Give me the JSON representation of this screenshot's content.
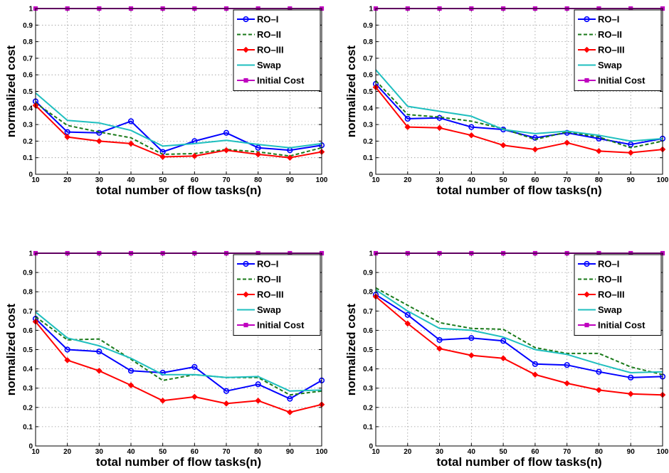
{
  "colors": {
    "RO-I": "#0000ff",
    "RO-II": "#1a7a1a",
    "RO-III": "#ff0000",
    "Swap": "#1fbfbf",
    "Initial Cost": "#bf00bf"
  },
  "chart_data": [
    {
      "type": "line",
      "xlabel": "total number of flow tasks(n)",
      "ylabel": "normalized cost",
      "xlim": [
        10,
        100
      ],
      "ylim": [
        0,
        1
      ],
      "xticks": [
        "10",
        "20",
        "30",
        "40",
        "50",
        "60",
        "70",
        "80",
        "90",
        "100"
      ],
      "yticks": [
        "0",
        "0.1",
        "0.2",
        "0.3",
        "0.4",
        "0.5",
        "0.6",
        "0.7",
        "0.8",
        "0.9",
        "1"
      ],
      "grid": true,
      "legend_position": "top-right",
      "x": [
        10,
        20,
        30,
        40,
        50,
        60,
        70,
        80,
        90,
        100
      ],
      "series": [
        {
          "name": "RO–I",
          "values": [
            0.44,
            0.255,
            0.25,
            0.32,
            0.135,
            0.2,
            0.25,
            0.16,
            0.145,
            0.175
          ]
        },
        {
          "name": "RO–II",
          "values": [
            0.43,
            0.295,
            0.255,
            0.22,
            0.12,
            0.125,
            0.15,
            0.135,
            0.11,
            0.16
          ]
        },
        {
          "name": "RO–III",
          "values": [
            0.415,
            0.225,
            0.2,
            0.185,
            0.105,
            0.11,
            0.145,
            0.12,
            0.1,
            0.135
          ]
        },
        {
          "name": "Swap",
          "values": [
            0.49,
            0.325,
            0.31,
            0.265,
            0.17,
            0.185,
            0.205,
            0.18,
            0.16,
            0.185
          ]
        },
        {
          "name": "Initial Cost",
          "values": [
            1,
            1,
            1,
            1,
            1,
            1,
            1,
            1,
            1,
            1
          ]
        }
      ]
    },
    {
      "type": "line",
      "xlabel": "total number of flow tasks(n)",
      "ylabel": "normalized cost",
      "xlim": [
        10,
        100
      ],
      "ylim": [
        0,
        1
      ],
      "xticks": [
        "10",
        "20",
        "30",
        "40",
        "50",
        "60",
        "70",
        "80",
        "90",
        "100"
      ],
      "yticks": [
        "0",
        "0.1",
        "0.2",
        "0.3",
        "0.4",
        "0.5",
        "0.6",
        "0.7",
        "0.8",
        "0.9",
        "1"
      ],
      "grid": true,
      "legend_position": "top-right",
      "x": [
        10,
        20,
        30,
        40,
        50,
        60,
        70,
        80,
        90,
        100
      ],
      "series": [
        {
          "name": "RO–I",
          "values": [
            0.545,
            0.335,
            0.34,
            0.285,
            0.27,
            0.22,
            0.25,
            0.215,
            0.18,
            0.215
          ]
        },
        {
          "name": "RO–II",
          "values": [
            0.565,
            0.36,
            0.345,
            0.32,
            0.275,
            0.21,
            0.255,
            0.225,
            0.16,
            0.2
          ]
        },
        {
          "name": "RO–III",
          "values": [
            0.525,
            0.285,
            0.28,
            0.235,
            0.175,
            0.15,
            0.19,
            0.14,
            0.13,
            0.15
          ]
        },
        {
          "name": "Swap",
          "values": [
            0.63,
            0.41,
            0.38,
            0.35,
            0.27,
            0.245,
            0.26,
            0.235,
            0.2,
            0.215
          ]
        },
        {
          "name": "Initial Cost",
          "values": [
            1,
            1,
            1,
            1,
            1,
            1,
            1,
            1,
            1,
            1
          ]
        }
      ]
    },
    {
      "type": "line",
      "xlabel": "total number of flow tasks(n)",
      "ylabel": "normalized cost",
      "xlim": [
        10,
        100
      ],
      "ylim": [
        0,
        1
      ],
      "xticks": [
        "10",
        "20",
        "30",
        "40",
        "50",
        "60",
        "70",
        "80",
        "90",
        "100"
      ],
      "yticks": [
        "0",
        "0.1",
        "0.2",
        "0.3",
        "0.4",
        "0.5",
        "0.6",
        "0.7",
        "0.8",
        "0.9",
        "1"
      ],
      "grid": true,
      "legend_position": "top-right",
      "x": [
        10,
        20,
        30,
        40,
        50,
        60,
        70,
        80,
        90,
        100
      ],
      "series": [
        {
          "name": "RO–I",
          "values": [
            0.66,
            0.5,
            0.49,
            0.39,
            0.38,
            0.41,
            0.285,
            0.32,
            0.245,
            0.34
          ]
        },
        {
          "name": "RO–II",
          "values": [
            0.67,
            0.55,
            0.555,
            0.45,
            0.34,
            0.37,
            0.355,
            0.355,
            0.265,
            0.285
          ]
        },
        {
          "name": "RO–III",
          "values": [
            0.645,
            0.445,
            0.39,
            0.315,
            0.235,
            0.255,
            0.22,
            0.235,
            0.175,
            0.215
          ]
        },
        {
          "name": "Swap",
          "values": [
            0.695,
            0.56,
            0.52,
            0.455,
            0.37,
            0.37,
            0.355,
            0.36,
            0.285,
            0.29
          ]
        },
        {
          "name": "Initial Cost",
          "values": [
            1,
            1,
            1,
            1,
            1,
            1,
            1,
            1,
            1,
            1
          ]
        }
      ]
    },
    {
      "type": "line",
      "xlabel": "total number of flow tasks(n)",
      "ylabel": "normalized cost",
      "xlim": [
        10,
        100
      ],
      "ylim": [
        0,
        1
      ],
      "xticks": [
        "10",
        "20",
        "30",
        "40",
        "50",
        "60",
        "70",
        "80",
        "90",
        "100"
      ],
      "yticks": [
        "0",
        "0.1",
        "0.2",
        "0.3",
        "0.4",
        "0.5",
        "0.6",
        "0.7",
        "0.8",
        "0.9",
        "1"
      ],
      "grid": true,
      "legend_position": "top-right",
      "x": [
        10,
        20,
        30,
        40,
        50,
        60,
        70,
        80,
        90,
        100
      ],
      "series": [
        {
          "name": "RO–I",
          "values": [
            0.785,
            0.68,
            0.55,
            0.56,
            0.545,
            0.425,
            0.42,
            0.385,
            0.355,
            0.36
          ]
        },
        {
          "name": "RO–II",
          "values": [
            0.82,
            0.73,
            0.64,
            0.61,
            0.605,
            0.51,
            0.48,
            0.48,
            0.41,
            0.37
          ]
        },
        {
          "name": "RO–III",
          "values": [
            0.775,
            0.635,
            0.505,
            0.47,
            0.455,
            0.37,
            0.325,
            0.29,
            0.27,
            0.265
          ]
        },
        {
          "name": "Swap",
          "values": [
            0.81,
            0.7,
            0.61,
            0.6,
            0.565,
            0.5,
            0.475,
            0.425,
            0.38,
            0.385
          ]
        },
        {
          "name": "Initial Cost",
          "values": [
            1,
            1,
            1,
            1,
            1,
            1,
            1,
            1,
            1,
            1
          ]
        }
      ]
    }
  ]
}
